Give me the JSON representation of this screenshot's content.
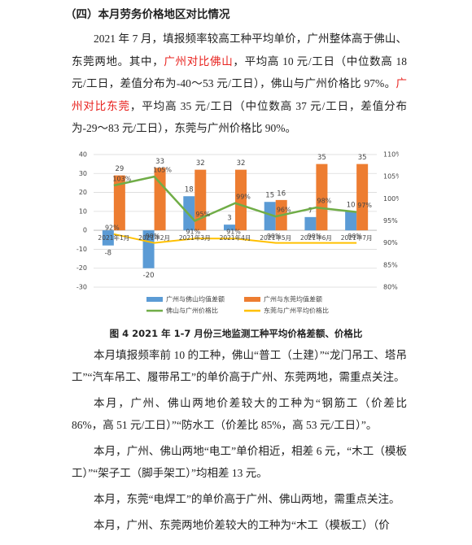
{
  "heading": "（四）本月劳务价格地区对比情况",
  "intro": [
    {
      "text": "2021 年 7 月，填报频率较高工种平均单价，广州整体高于佛山、东莞两地。其中，"
    },
    {
      "text": "广州对比佛山",
      "color": "#e8231f"
    },
    {
      "text": "，平均高 10 元/工日（中位数高 18 元/工日，差值分布为-40～53 元/工日），佛山与广州价格比 97%。"
    },
    {
      "text": "广州对比东莞",
      "color": "#e8231f"
    },
    {
      "text": "，平均高 35 元/工日（中位数高 37 元/工日，差值分布为-29～83 元/工日），东莞与广州价格比 90%。"
    }
  ],
  "chart_data": {
    "type": "bar",
    "categories": [
      "2021年1月",
      "2021年2月",
      "2021年3月",
      "2021年4月",
      "2021年5月",
      "2021年6月",
      "2021年7月"
    ],
    "series": [
      {
        "name": "广州与佛山均值差额",
        "color": "#5b9bd5",
        "values": [
          -8,
          -20,
          18,
          3,
          15,
          7,
          10
        ]
      },
      {
        "name": "广州与东莞均值差额",
        "color": "#ed7d31",
        "values": [
          29,
          33,
          32,
          32,
          16,
          35,
          35
        ]
      },
      {
        "name": "佛山与广州价格比",
        "color": "#70ad47",
        "type": "line",
        "axis": "y2",
        "values": [
          103,
          105,
          95,
          99,
          96,
          98,
          97
        ],
        "value_labels": [
          "103%",
          "105%",
          "95%",
          "99%",
          "96%",
          "98%",
          "97%"
        ]
      },
      {
        "name": "东莞与广州平均价格比",
        "color": "#ffc000",
        "type": "line",
        "axis": "y2",
        "values": [
          92,
          90,
          91,
          91,
          90,
          90,
          90
        ],
        "value_labels": [
          "92%",
          "90%",
          "91%",
          "91%",
          "90%",
          "90%",
          "90%"
        ]
      }
    ],
    "ylim": [
      -30,
      40
    ],
    "yticks": [
      -30,
      -20,
      -10,
      0,
      10,
      20,
      30,
      40
    ],
    "y2lim": [
      80,
      110
    ],
    "y2ticks": [
      {
        "value": 80,
        "label": "80%"
      },
      {
        "value": 85,
        "label": "85%"
      },
      {
        "value": 90,
        "label": "90%"
      },
      {
        "value": 95,
        "label": "95%"
      },
      {
        "value": 100,
        "label": "100%"
      },
      {
        "value": 105,
        "label": "105%"
      },
      {
        "value": 110,
        "label": "110%"
      }
    ],
    "grid": true,
    "legend": "bottom"
  },
  "caption": "图 4  2021 年 1-7 月份三地监测工种平均价格差额、价格比",
  "paragraphs": [
    "本月填报频率前 10 的工种，佛山“普工（土建）”“龙门吊工、塔吊工”“汽车吊工、履带吊工”的单价高于广州、东莞两地，需重点关注。",
    "本月，广州、佛山两地价差较大的工种为“钢筋工（价差比 86%，高 51 元/工日）”“防水工（价差比 85%，高 53 元/工日）”。",
    "本月，广州、佛山两地“电工”单价相近，相差 6 元，“木工（模板工）”“架子工（脚手架工）”均相差 13 元。",
    "本月，东莞“电焊工”的单价高于广州、佛山两地，需重点关注。",
    "本月，广州、东莞两地价差较大的工种为“木工（模板工）（价"
  ]
}
